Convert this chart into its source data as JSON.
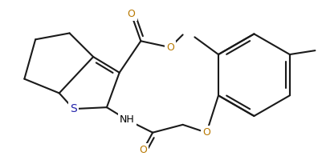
{
  "bg": "#ffffff",
  "lc": "#1a1a1a",
  "lw": 1.5,
  "O_color": "#b87800",
  "S_color": "#2222aa",
  "fs": 8.5,
  "figsize": [
    4.02,
    1.95
  ],
  "dpi": 100,
  "xlim": [
    0,
    402
  ],
  "ylim": [
    0,
    195
  ]
}
